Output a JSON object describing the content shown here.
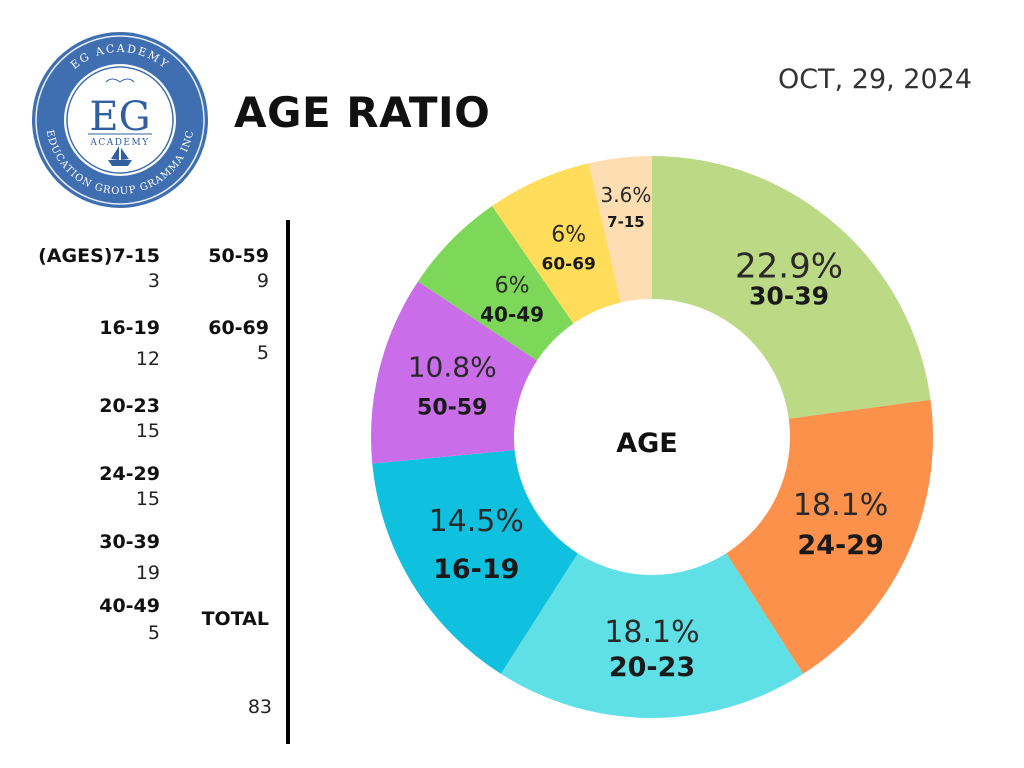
{
  "header": {
    "title": "AGE RATIO",
    "date": "OCT, 29, 2024"
  },
  "logo": {
    "ring_top_text": "EG ACADEMY",
    "ring_bottom_text": "EDUCATION GROUP GRAMMA INC",
    "initials": "EG",
    "academy": "ACADEMY",
    "colors": {
      "ring": "#3f6fb0",
      "inner": "#ffffff",
      "text": "#2f5f9f"
    }
  },
  "legend": {
    "col1": [
      {
        "label": "(AGES)7-15",
        "value": "3"
      },
      {
        "label": "16-19",
        "value": "12"
      },
      {
        "label": "20-23",
        "value": "15"
      },
      {
        "label": "24-29",
        "value": "15"
      },
      {
        "label": "30-39",
        "value": "19"
      },
      {
        "label": "40-49",
        "value": "5"
      }
    ],
    "col2": [
      {
        "label": "50-59",
        "value": "9"
      },
      {
        "label": "60-69",
        "value": "5"
      }
    ],
    "total_label": "TOTAL",
    "total_value": "83"
  },
  "chart_data": {
    "type": "pie",
    "donut": true,
    "center_label": "AGE",
    "legend": "left",
    "categories": [
      "30-39",
      "24-29",
      "20-23",
      "16-19",
      "50-59",
      "40-49",
      "60-69",
      "7-15"
    ],
    "values": [
      19,
      15,
      15,
      12,
      9,
      5,
      5,
      3
    ],
    "percent_labels": [
      "22.9%",
      "18.1%",
      "18.1%",
      "14.5%",
      "10.8%",
      "6%",
      "6%",
      "3.6%"
    ],
    "colors": [
      "#bcd985",
      "#fb914b",
      "#5fe0e6",
      "#10c0df",
      "#c96ee8",
      "#7dd859",
      "#ffdd5b",
      "#fddeb3"
    ]
  }
}
